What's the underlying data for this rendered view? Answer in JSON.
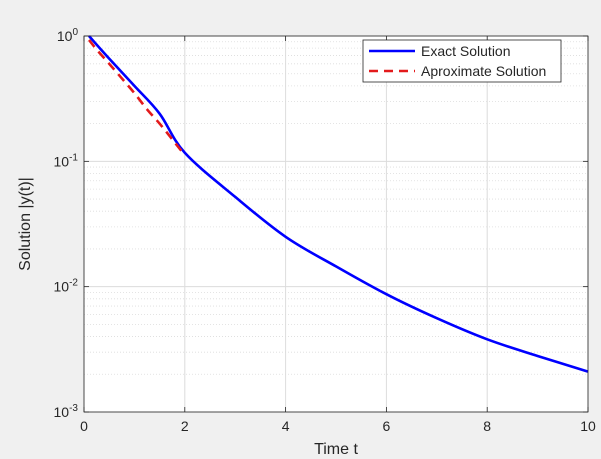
{
  "chart_data": {
    "type": "line",
    "xlabel": "Time t",
    "ylabel": "Solution |y(t)|",
    "xlim": [
      0,
      10
    ],
    "ylim": [
      0.001,
      1
    ],
    "yscale": "log",
    "grid": true,
    "minor_grid_y": true,
    "x_ticks": [
      0,
      2,
      4,
      6,
      8,
      10
    ],
    "x_tick_labels": [
      "0",
      "2",
      "4",
      "6",
      "8",
      "10"
    ],
    "y_ticks": [
      {
        "value": 1,
        "base": "10",
        "exp": "0"
      },
      {
        "value": 0.1,
        "base": "10",
        "exp": "-1"
      },
      {
        "value": 0.01,
        "base": "10",
        "exp": "-2"
      },
      {
        "value": 0.001,
        "base": "10",
        "exp": "-3"
      }
    ],
    "legend_position": "top-right",
    "series": [
      {
        "name": "Exact Solution",
        "color": "#0000ff",
        "style": "solid",
        "x": [
          0.1,
          0.5,
          1,
          1.5,
          2,
          3,
          4,
          5,
          6,
          7,
          8,
          9,
          10
        ],
        "y": [
          1.0,
          0.66,
          0.4,
          0.24,
          0.117,
          0.052,
          0.025,
          0.0145,
          0.0087,
          0.0056,
          0.0038,
          0.0028,
          0.0021
        ]
      },
      {
        "name": "Aproximate Solution",
        "color": "#e31a1c",
        "style": "dashed",
        "x": [
          0.1,
          0.25,
          0.5,
          0.75,
          1,
          1.25,
          1.5,
          1.75,
          2
        ],
        "y": [
          0.93,
          0.78,
          0.6,
          0.46,
          0.35,
          0.26,
          0.2,
          0.15,
          0.112
        ]
      }
    ]
  }
}
